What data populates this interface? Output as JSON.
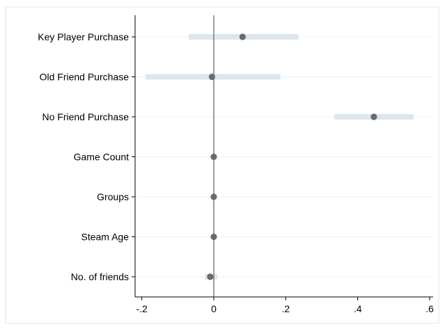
{
  "chart_data": {
    "type": "coefficient_plot",
    "title": "",
    "xlabel": "",
    "ylabel": "",
    "xlim": [
      -0.2,
      0.6
    ],
    "xticks": [
      {
        "value": -0.2,
        "label": "-.2"
      },
      {
        "value": 0,
        "label": "0"
      },
      {
        "value": 0.2,
        "label": ".2"
      },
      {
        "value": 0.4,
        "label": ".4"
      },
      {
        "value": 0.6,
        "label": ".6"
      }
    ],
    "reference_line": 0,
    "series": [
      {
        "label": "Key Player Purchase",
        "estimate": 0.08,
        "ci_low": -0.07,
        "ci_high": 0.235
      },
      {
        "label": "Old Friend Purchase",
        "estimate": -0.005,
        "ci_low": -0.19,
        "ci_high": 0.185
      },
      {
        "label": "No Friend Purchase",
        "estimate": 0.445,
        "ci_low": 0.335,
        "ci_high": 0.555
      },
      {
        "label": "Game Count",
        "estimate": 0.0,
        "ci_low": -0.002,
        "ci_high": 0.002
      },
      {
        "label": "Groups",
        "estimate": 0.0,
        "ci_low": -0.002,
        "ci_high": 0.002
      },
      {
        "label": "Steam Age",
        "estimate": 0.0,
        "ci_low": -0.002,
        "ci_high": 0.002
      },
      {
        "label": "No. of friends",
        "estimate": -0.01,
        "ci_low": -0.025,
        "ci_high": 0.01
      }
    ],
    "colors": {
      "marker": "#6b6b6b",
      "ci_bar": "#dde6ee",
      "gridline": "#eaf0f5",
      "axis": "#000000",
      "reference_line": "#7f7f7f",
      "frame": "#e6e6e6"
    }
  }
}
